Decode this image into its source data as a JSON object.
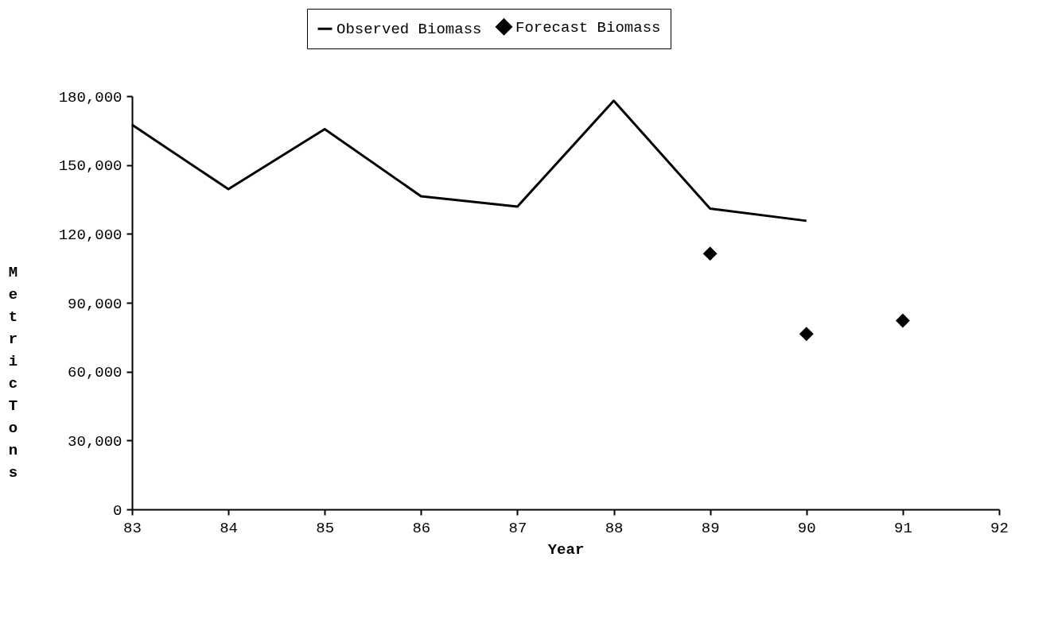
{
  "chart_data": {
    "type": "line",
    "xlabel": "Year",
    "ylabel": "Metric Tons",
    "x": [
      83,
      84,
      85,
      86,
      87,
      88,
      89,
      90,
      91
    ],
    "series": [
      {
        "name": "Observed Biomass",
        "color": "#000000",
        "values": [
          167500,
          139500,
          165600,
          136400,
          131900,
          178000,
          131000,
          125700,
          null
        ]
      },
      {
        "name": "Forecast Biomass",
        "type": "scatter",
        "marker": "diamond",
        "color": "#000000",
        "values": [
          null,
          null,
          null,
          null,
          null,
          null,
          111400,
          76400,
          82200
        ]
      }
    ],
    "xlim": [
      83,
      92
    ],
    "xticks": [
      83,
      84,
      85,
      86,
      87,
      88,
      89,
      90,
      91,
      92
    ],
    "ylim": [
      0,
      180000
    ],
    "yticks": [
      0,
      {
        "value": 30000,
        "label": "30,000"
      },
      {
        "value": 60000,
        "label": "60,000"
      },
      {
        "value": 90000,
        "label": "90,000"
      },
      {
        "value": 120000,
        "label": "120,000"
      },
      {
        "value": 150000,
        "label": "150,000"
      },
      {
        "value": 180000,
        "label": "180,000"
      }
    ],
    "grid": false,
    "legend": "top"
  }
}
